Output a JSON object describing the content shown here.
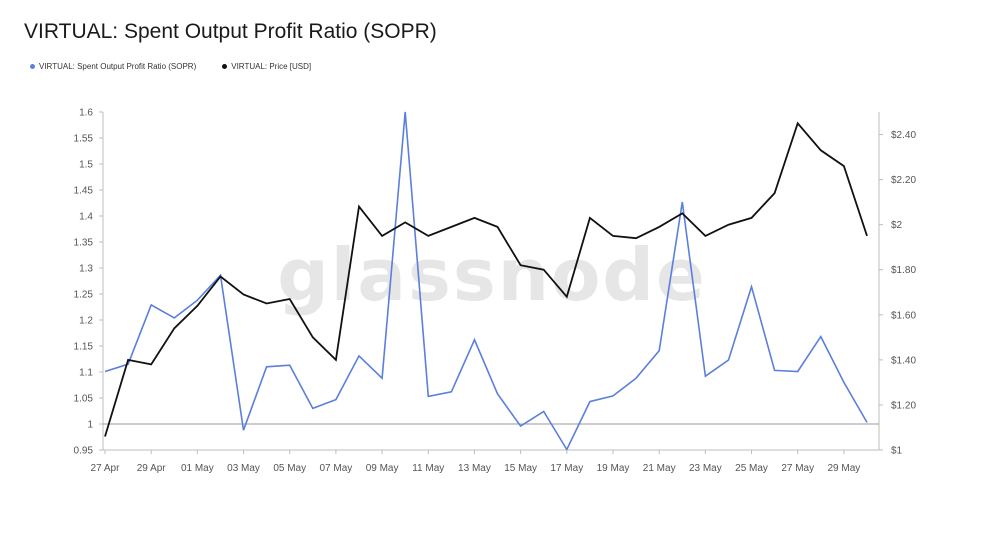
{
  "chart_data": {
    "type": "line",
    "title": "VIRTUAL: Spent Output Profit Ratio (SOPR)",
    "watermark": "glassnode",
    "x_labels": [
      "27 Apr",
      "29 Apr",
      "01 May",
      "03 May",
      "05 May",
      "07 May",
      "09 May",
      "11 May",
      "13 May",
      "15 May",
      "17 May",
      "19 May",
      "21 May",
      "23 May",
      "25 May",
      "27 May",
      "29 May"
    ],
    "y_left": {
      "min": 0.95,
      "max": 1.6,
      "ticks": [
        "0.95",
        "1",
        "1.05",
        "1.1",
        "1.15",
        "1.2",
        "1.25",
        "1.3",
        "1.35",
        "1.4",
        "1.45",
        "1.5",
        "1.55",
        "1.6"
      ],
      "baseline": 1
    },
    "y_right": {
      "min": 1.0,
      "max": 2.5,
      "ticks": [
        "$1",
        "$1.20",
        "$1.40",
        "$1.60",
        "$1.80",
        "$2",
        "$2.20",
        "$2.40"
      ],
      "tick_values": [
        1.0,
        1.2,
        1.4,
        1.6,
        1.8,
        2.0,
        2.2,
        2.4
      ]
    },
    "series": [
      {
        "name": "VIRTUAL: Spent Output Profit Ratio (SOPR)",
        "axis": "left",
        "color": "#5b7fdc",
        "values": [
          1.101,
          1.115,
          1.229,
          1.204,
          1.238,
          1.286,
          0.988,
          1.11,
          1.113,
          1.03,
          1.047,
          1.131,
          1.088,
          1.6,
          1.053,
          1.062,
          1.162,
          1.058,
          0.996,
          1.024,
          0.951,
          1.043,
          1.054,
          1.088,
          1.141,
          1.427,
          1.092,
          1.123,
          1.264,
          1.103,
          1.101,
          1.168,
          1.08,
          1.003
        ]
      },
      {
        "name": "VIRTUAL: Price [USD]",
        "axis": "right",
        "color": "#111111",
        "values": [
          1.06,
          1.4,
          1.38,
          1.54,
          1.64,
          1.77,
          1.69,
          1.65,
          1.67,
          1.5,
          1.4,
          2.08,
          1.95,
          2.01,
          1.95,
          1.99,
          2.03,
          1.99,
          1.82,
          1.8,
          1.68,
          2.03,
          1.95,
          1.94,
          1.99,
          2.05,
          1.95,
          2.0,
          2.03,
          2.14,
          2.45,
          2.33,
          2.26,
          1.95
        ]
      }
    ]
  }
}
